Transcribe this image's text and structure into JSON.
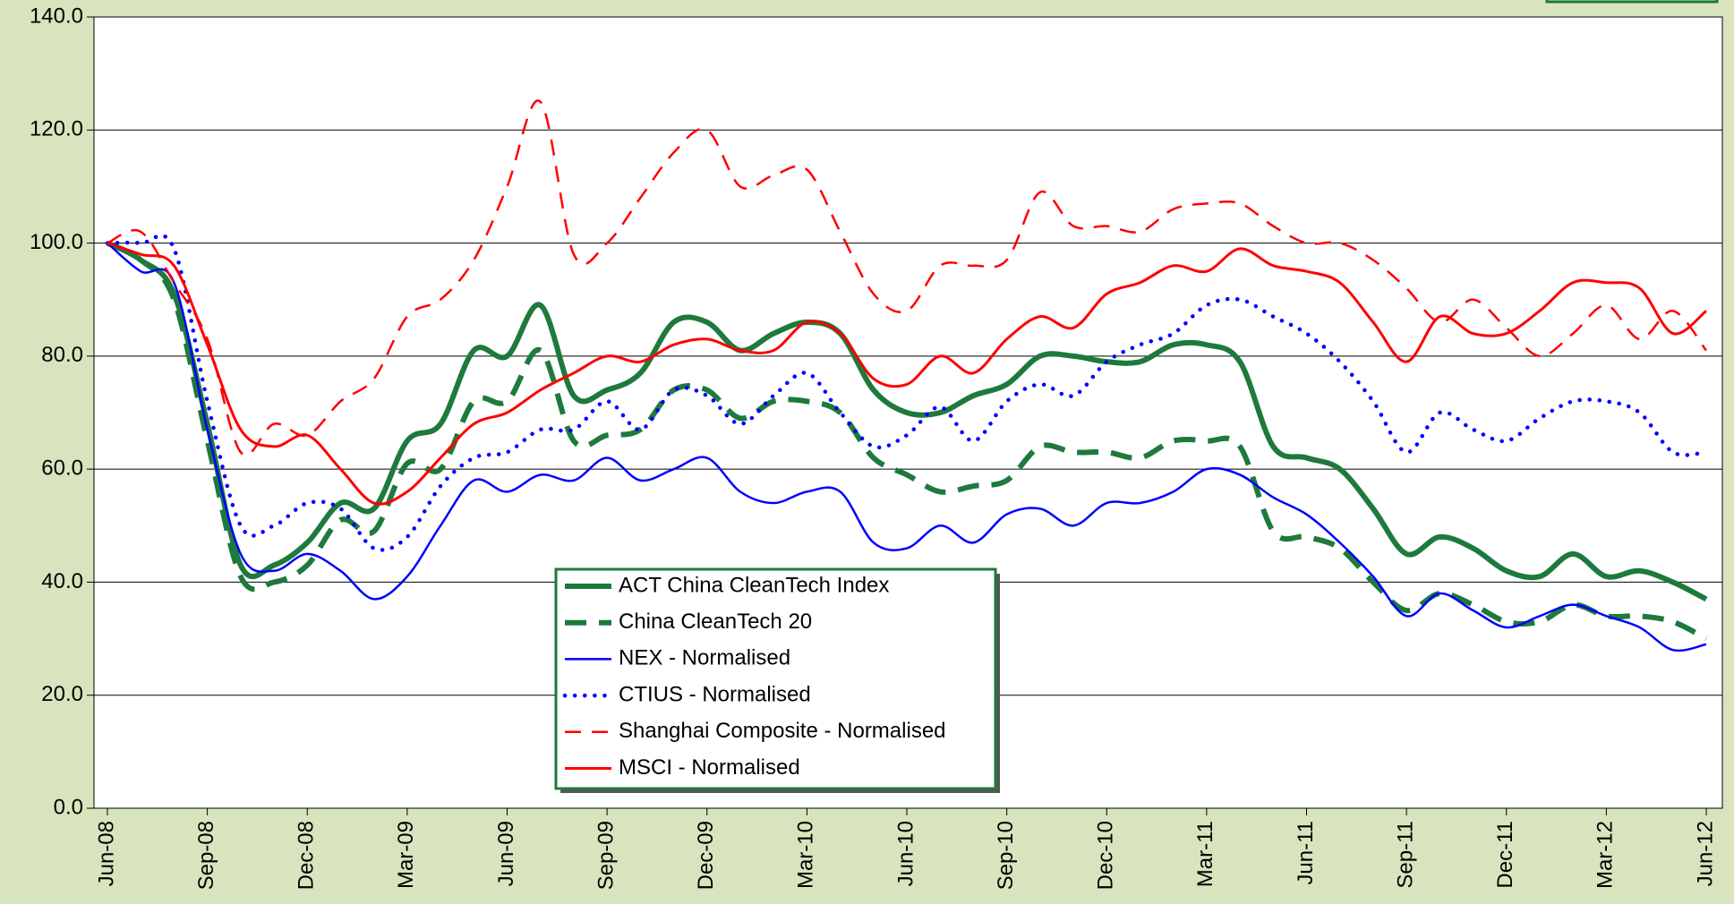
{
  "chart_data": {
    "type": "line",
    "categories": [
      "Jun-08",
      null,
      null,
      "Sep-08",
      null,
      null,
      "Dec-08",
      null,
      null,
      "Mar-09",
      null,
      null,
      "Jun-09",
      null,
      null,
      "Sep-09",
      null,
      null,
      "Dec-09",
      null,
      null,
      "Mar-10",
      null,
      null,
      "Jun-10",
      null,
      null,
      "Sep-10",
      null,
      null,
      "Dec-10",
      null,
      null,
      "Mar-11",
      null,
      null,
      "Jun-11",
      null,
      null,
      "Sep-11",
      null,
      null,
      "Dec-11",
      null,
      null,
      "Mar-12",
      null,
      null,
      "Jun-12"
    ],
    "series": [
      {
        "name": "ACT China CleanTech Index",
        "color": "#1e7a3c",
        "style": "solid",
        "linewidth": 6,
        "values": [
          100,
          97,
          91,
          68,
          43,
          43,
          47,
          54,
          53,
          65,
          68,
          81,
          80,
          89,
          73,
          74,
          77,
          86,
          86,
          81,
          84,
          86,
          84,
          74,
          70,
          70,
          73,
          75,
          80,
          80,
          79,
          79,
          82,
          82,
          79,
          64,
          62,
          60,
          53,
          45,
          48,
          46,
          42,
          41,
          45,
          41,
          42,
          40,
          37
        ]
      },
      {
        "name": "China CleanTech 20",
        "color": "#1e7a3c",
        "style": "dashed",
        "linewidth": 6,
        "values": [
          100,
          97,
          90,
          65,
          41,
          40,
          43,
          51,
          49,
          61,
          60,
          72,
          72,
          81,
          65,
          66,
          67,
          74,
          74,
          69,
          72,
          72,
          70,
          62,
          59,
          56,
          57,
          58,
          64,
          63,
          63,
          62,
          65,
          65,
          64,
          49,
          48,
          46,
          40,
          35,
          38,
          36,
          33,
          33,
          36,
          34,
          34,
          33,
          30
        ]
      },
      {
        "name": "NEX - Normalised",
        "color": "#0000ff",
        "style": "solid",
        "linewidth": 2.5,
        "values": [
          100,
          95,
          93,
          67,
          45,
          42,
          45,
          42,
          37,
          41,
          50,
          58,
          56,
          59,
          58,
          62,
          58,
          60,
          62,
          56,
          54,
          56,
          56,
          47,
          46,
          50,
          47,
          52,
          53,
          50,
          54,
          54,
          56,
          60,
          59,
          55,
          52,
          47,
          41,
          34,
          38,
          35,
          32,
          34,
          36,
          34,
          32,
          28,
          29
        ]
      },
      {
        "name": "CTIUS - Normalised",
        "color": "#0000ff",
        "style": "dotted",
        "linewidth": 4.5,
        "values": [
          100,
          100,
          99,
          72,
          50,
          50,
          54,
          53,
          46,
          48,
          57,
          62,
          63,
          67,
          67,
          72,
          67,
          74,
          73,
          68,
          73,
          77,
          70,
          64,
          66,
          71,
          65,
          72,
          75,
          73,
          79,
          82,
          84,
          89,
          90,
          87,
          84,
          79,
          72,
          63,
          70,
          67,
          65,
          69,
          72,
          72,
          70,
          63,
          63
        ]
      },
      {
        "name": "Shanghai Composite - Normalised",
        "color": "#ff0000",
        "style": "dashed",
        "linewidth": 2.5,
        "values": [
          100,
          102,
          93,
          83,
          63,
          68,
          66,
          72,
          76,
          87,
          90,
          97,
          110,
          125,
          98,
          100,
          108,
          116,
          120,
          110,
          112,
          113,
          102,
          91,
          88,
          96,
          96,
          97,
          109,
          103,
          103,
          102,
          106,
          107,
          107,
          103,
          100,
          100,
          97,
          92,
          86,
          90,
          85,
          80,
          84,
          89,
          83,
          88,
          81
        ]
      },
      {
        "name": "MSCI - Normalised",
        "color": "#ff0000",
        "style": "solid",
        "linewidth": 3,
        "values": [
          100,
          98,
          96,
          82,
          67,
          64,
          66,
          60,
          54,
          56,
          62,
          68,
          70,
          74,
          77,
          80,
          79,
          82,
          83,
          81,
          81,
          86,
          84,
          76,
          75,
          80,
          77,
          83,
          87,
          85,
          91,
          93,
          96,
          95,
          99,
          96,
          95,
          93,
          86,
          79,
          87,
          84,
          84,
          88,
          93,
          93,
          92,
          84,
          88
        ]
      }
    ],
    "ylim": [
      0,
      140
    ],
    "yticks": [
      {
        "value": 0,
        "label": "0.0"
      },
      {
        "value": 20,
        "label": "20.0"
      },
      {
        "value": 40,
        "label": "40.0"
      },
      {
        "value": 60,
        "label": "60.0"
      },
      {
        "value": 80,
        "label": "80.0"
      },
      {
        "value": 100,
        "label": "100.0"
      },
      {
        "value": 120,
        "label": "120.0"
      },
      {
        "value": 140,
        "label": "140.0"
      }
    ],
    "grid": true,
    "legend": "lower center"
  }
}
